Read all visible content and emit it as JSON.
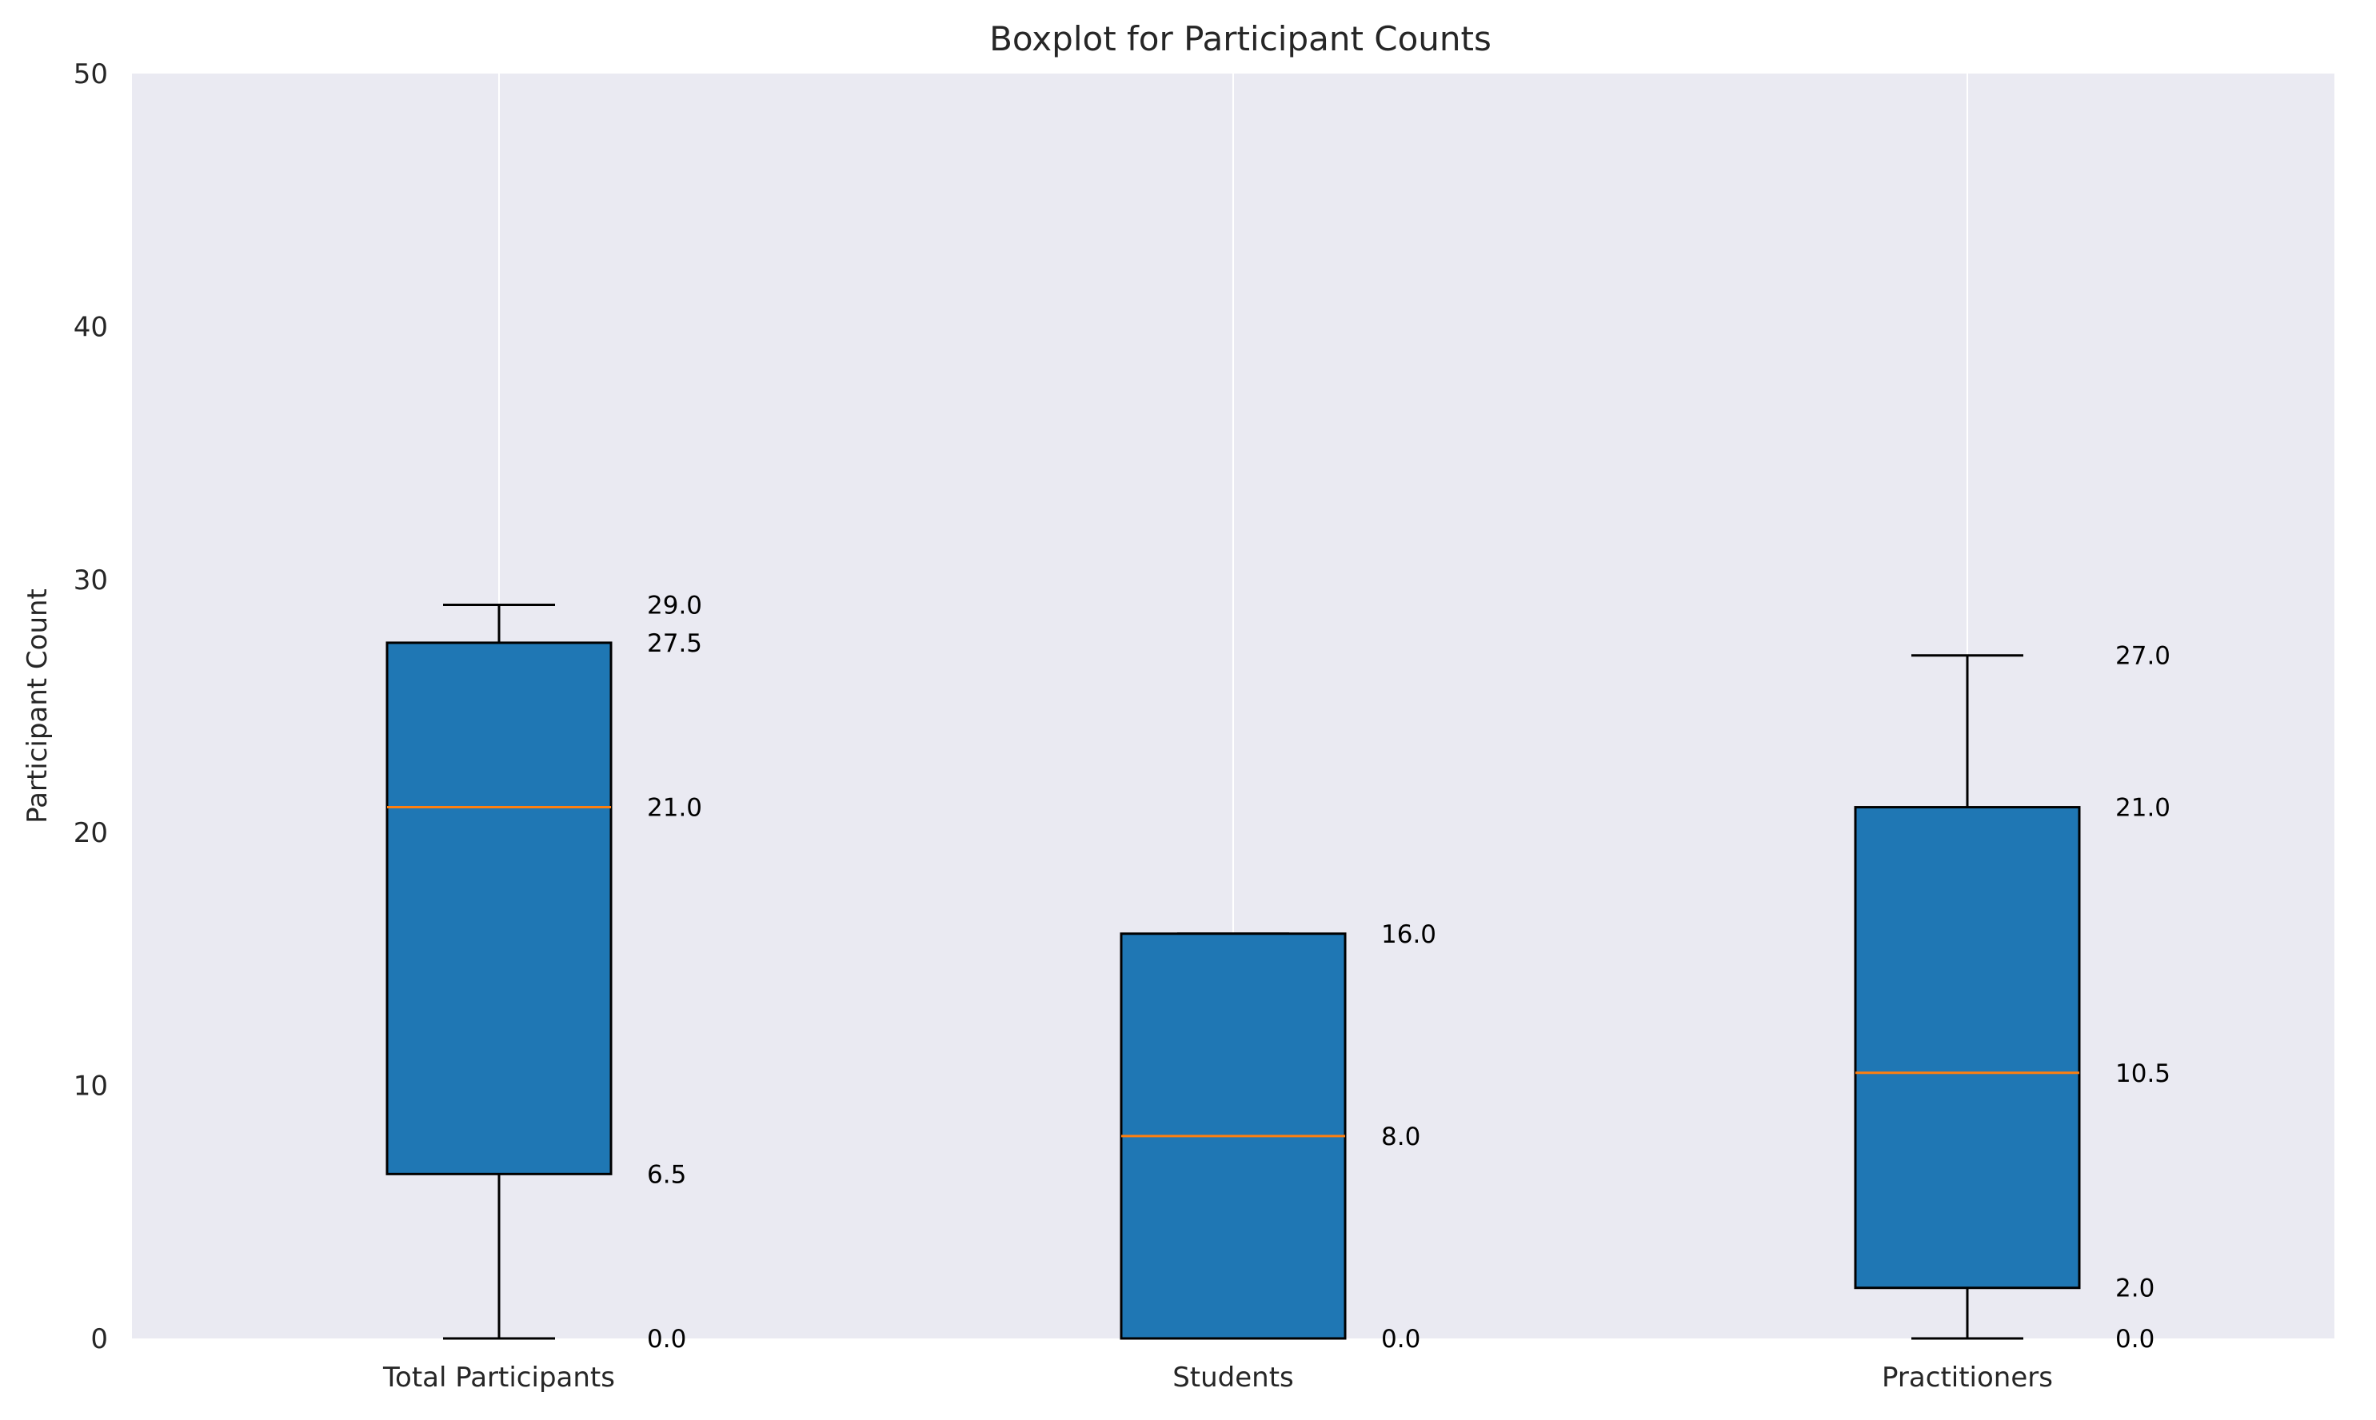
{
  "chart_data": {
    "type": "box",
    "title": "Boxplot for Participant Counts",
    "xlabel": "",
    "ylabel": "Participant Count",
    "ylim": [
      0,
      50
    ],
    "yticks": [
      0,
      10,
      20,
      30,
      40,
      50
    ],
    "grid": "vertical",
    "colors": {
      "background": "#eaeaf2",
      "box_fill": "#1f77b4",
      "box_edge": "#000000",
      "median": "#ff7f0e",
      "whisker": "#000000",
      "grid": "#ffffff"
    },
    "categories": [
      "Total Participants",
      "Students",
      "Practitioners"
    ],
    "boxes": [
      {
        "category": "Total Participants",
        "whisker_low": 0.0,
        "q1": 6.5,
        "median": 21.0,
        "q3": 27.5,
        "whisker_high": 29.0,
        "labels": [
          "0.0",
          "6.5",
          "21.0",
          "27.5",
          "29.0"
        ]
      },
      {
        "category": "Students",
        "whisker_low": 0.0,
        "q1": 0.0,
        "median": 8.0,
        "q3": 16.0,
        "whisker_high": 16.0,
        "labels": [
          "0.0",
          "8.0",
          "16.0"
        ]
      },
      {
        "category": "Practitioners",
        "whisker_low": 0.0,
        "q1": 2.0,
        "median": 10.5,
        "q3": 21.0,
        "whisker_high": 27.0,
        "labels": [
          "0.0",
          "2.0",
          "10.5",
          "21.0",
          "27.0"
        ]
      }
    ]
  }
}
